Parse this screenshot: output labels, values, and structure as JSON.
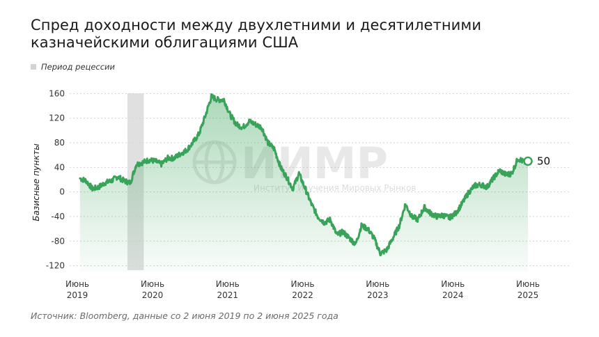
{
  "chart_data": {
    "type": "area",
    "title": "Спред доходности между двухлетними и десятилетними казначейскими облигациями США",
    "ylabel": "Базисные пункты",
    "legend": [
      {
        "label": "Период рецессии",
        "color": "#d4d4d4"
      }
    ],
    "ylim": [
      -125,
      165
    ],
    "yticks": [
      160,
      120,
      80,
      40,
      0,
      -40,
      -80,
      -120
    ],
    "x_range": [
      "2019-06-02",
      "2025-06-02"
    ],
    "x_ticks": [
      {
        "date": "2019-06",
        "line1": "Июнь",
        "line2": "2019"
      },
      {
        "date": "2020-06",
        "line1": "Июнь",
        "line2": "2020"
      },
      {
        "date": "2021-06",
        "line1": "Июнь",
        "line2": "2021"
      },
      {
        "date": "2022-06",
        "line1": "Июнь",
        "line2": "2022"
      },
      {
        "date": "2023-06",
        "line1": "Июнь",
        "line2": "2023"
      },
      {
        "date": "2024-06",
        "line1": "Июнь",
        "line2": "2024"
      },
      {
        "date": "2025-06",
        "line1": "Июнь",
        "line2": "2025"
      }
    ],
    "recession": {
      "start": "2020-02",
      "end": "2020-04"
    },
    "line_color": "#3aa35a",
    "series": [
      {
        "points": [
          [
            "2019-06",
            22
          ],
          [
            "2019-07",
            18
          ],
          [
            "2019-08",
            5
          ],
          [
            "2019-09",
            8
          ],
          [
            "2019-10",
            15
          ],
          [
            "2019-11",
            18
          ],
          [
            "2019-12",
            25
          ],
          [
            "2020-01",
            18
          ],
          [
            "2020-02",
            15
          ],
          [
            "2020-03",
            45
          ],
          [
            "2020-04",
            48
          ],
          [
            "2020-05",
            52
          ],
          [
            "2020-06",
            50
          ],
          [
            "2020-07",
            45
          ],
          [
            "2020-08",
            55
          ],
          [
            "2020-09",
            55
          ],
          [
            "2020-10",
            62
          ],
          [
            "2020-11",
            68
          ],
          [
            "2020-12",
            80
          ],
          [
            "2021-01",
            95
          ],
          [
            "2021-02",
            125
          ],
          [
            "2021-03",
            155
          ],
          [
            "2021-04",
            150
          ],
          [
            "2021-05",
            150
          ],
          [
            "2021-06",
            125
          ],
          [
            "2021-07",
            110
          ],
          [
            "2021-08",
            105
          ],
          [
            "2021-09",
            115
          ],
          [
            "2021-10",
            110
          ],
          [
            "2021-11",
            105
          ],
          [
            "2021-12",
            80
          ],
          [
            "2022-01",
            70
          ],
          [
            "2022-02",
            40
          ],
          [
            "2022-03",
            25
          ],
          [
            "2022-04",
            5
          ],
          [
            "2022-05",
            30
          ],
          [
            "2022-06",
            5
          ],
          [
            "2022-07",
            -20
          ],
          [
            "2022-08",
            -40
          ],
          [
            "2022-09",
            -50
          ],
          [
            "2022-10",
            -45
          ],
          [
            "2022-11",
            -70
          ],
          [
            "2022-12",
            -65
          ],
          [
            "2023-01",
            -75
          ],
          [
            "2023-02",
            -85
          ],
          [
            "2023-03",
            -55
          ],
          [
            "2023-04",
            -60
          ],
          [
            "2023-05",
            -75
          ],
          [
            "2023-06",
            -100
          ],
          [
            "2023-07",
            -95
          ],
          [
            "2023-08",
            -75
          ],
          [
            "2023-09",
            -55
          ],
          [
            "2023-10",
            -20
          ],
          [
            "2023-11",
            -40
          ],
          [
            "2023-12",
            -45
          ],
          [
            "2024-01",
            -25
          ],
          [
            "2024-02",
            -35
          ],
          [
            "2024-03",
            -40
          ],
          [
            "2024-04",
            -38
          ],
          [
            "2024-05",
            -42
          ],
          [
            "2024-06",
            -35
          ],
          [
            "2024-07",
            -20
          ],
          [
            "2024-08",
            -2
          ],
          [
            "2024-09",
            10
          ],
          [
            "2024-10",
            12
          ],
          [
            "2024-11",
            8
          ],
          [
            "2024-12",
            22
          ],
          [
            "2025-01",
            35
          ],
          [
            "2025-02",
            28
          ],
          [
            "2025-03",
            30
          ],
          [
            "2025-04",
            55
          ],
          [
            "2025-05",
            48
          ],
          [
            "2025-06-02",
            50
          ]
        ]
      }
    ],
    "end_value": "50",
    "watermark": {
      "main": "ИИМР",
      "sub": "Институт Изучения Мировых Рынков"
    },
    "source": "Источник: Bloomberg, данные со 2 июня 2019 по 2 июня 2025 года"
  }
}
